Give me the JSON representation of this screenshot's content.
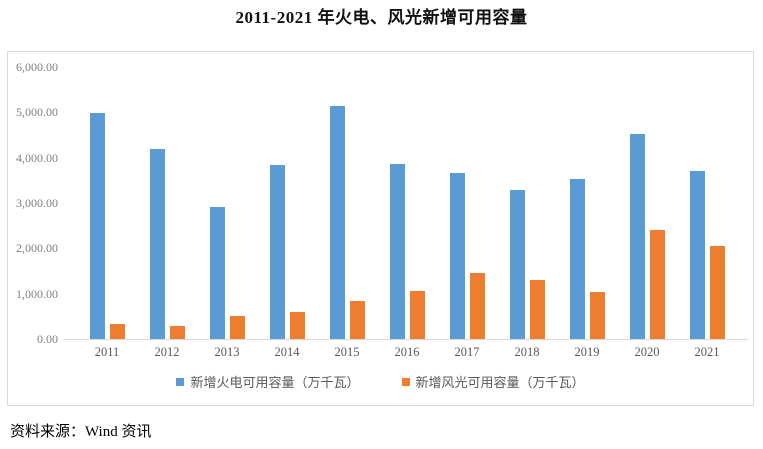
{
  "title": "2011-2021 年火电、风光新增可用容量",
  "source": "资料来源：Wind 资讯",
  "colors": {
    "thermal_blue": "#5B9BD5",
    "wind_solar_orange": "#ED7D31",
    "axis_line": "#D9D9D9",
    "tick_label": "#7F7F7F",
    "year_label": "#595959",
    "frame_border": "#D9D9D9"
  },
  "chart_data": {
    "type": "bar",
    "title": "2011-2021 年火电、风光新增可用容量",
    "categories": [
      "2011",
      "2012",
      "2013",
      "2014",
      "2015",
      "2016",
      "2017",
      "2018",
      "2019",
      "2020",
      "2021"
    ],
    "series": [
      {
        "name": "新增火电可用容量（万千瓦）",
        "color": "#5B9BD5",
        "values": [
          4990,
          4200,
          2910,
          3840,
          5130,
          3870,
          3660,
          3280,
          3530,
          4530,
          3700
        ]
      },
      {
        "name": "新增风光可用容量（万千瓦）",
        "color": "#ED7D31",
        "values": [
          340,
          280,
          510,
          590,
          840,
          1060,
          1460,
          1310,
          1030,
          2400,
          2060
        ]
      }
    ],
    "ylim": [
      0,
      6000
    ],
    "ytick_step": 1000,
    "ytick_labels": [
      "0.00",
      "1,000.00",
      "2,000.00",
      "3,000.00",
      "4,000.00",
      "5,000.00",
      "6,000.00"
    ],
    "grid": false,
    "legend_position": "bottom"
  }
}
